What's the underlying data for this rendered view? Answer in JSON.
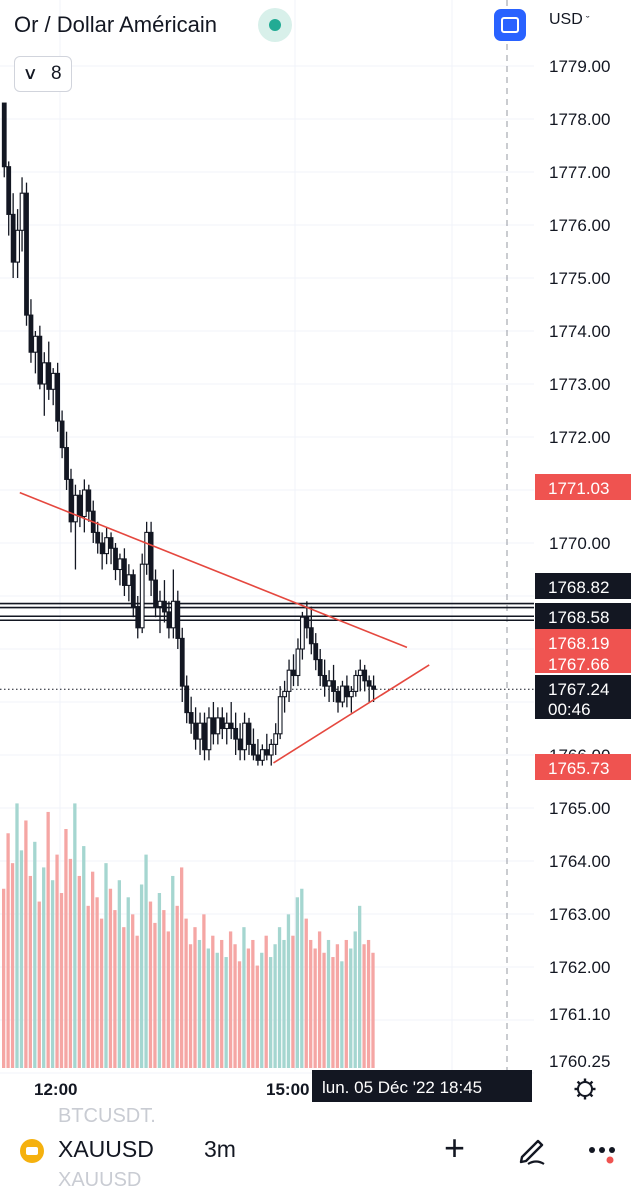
{
  "header": {
    "title": "Or / Dollar Américain",
    "currency": "USD",
    "indicators_count": "8"
  },
  "bottom_bar": {
    "ticker": "XAUUSD",
    "interval": "3m",
    "ghost_prev": "BTCUSDT.",
    "ghost_next": "XAUUSD"
  },
  "icons": [
    "status-dot-icon",
    "fullscreen-icon",
    "chevron-down-icon",
    "gold-icon",
    "plus-icon",
    "pencil-icon",
    "more-icon",
    "gear-icon"
  ],
  "colors": {
    "up": "#26a69a",
    "down": "#ef5350",
    "line": "#131722",
    "trendline": "#e5483f",
    "accent": "#2962ff"
  },
  "chart_data": {
    "type": "candlestick",
    "y_axis": {
      "ticks": [
        "1779.00",
        "1778.00",
        "1777.00",
        "1776.00",
        "1775.00",
        "1774.00",
        "1773.00",
        "1772.00",
        "1770.00",
        "1766.00",
        "1765.00",
        "1764.00",
        "1763.00",
        "1762.00",
        "1761.10",
        "1760.25"
      ]
    },
    "x_axis": {
      "ticks": [
        "12:00",
        "15:00"
      ]
    },
    "crosshair_time_label": "lun. 05 Déc '22   18:45",
    "price_labels": [
      {
        "text": "1771.03",
        "price": 1771.03,
        "style": "red"
      },
      {
        "text": "1768.82",
        "price": 1768.82,
        "style": "dark"
      },
      {
        "text": "1768.58",
        "price": 1768.58,
        "style": "dark"
      },
      {
        "text": "1768.19",
        "price": 1768.19,
        "style": "red"
      },
      {
        "text": "1767.66",
        "price": 1767.66,
        "style": "red"
      },
      {
        "text": "1767.24",
        "price": 1767.24,
        "style": "dark",
        "countdown": "00:46"
      },
      {
        "text": "1765.73",
        "price": 1765.73,
        "style": "red"
      }
    ],
    "horizontal_lines": [
      1768.82,
      1768.58
    ],
    "last_price": 1767.24,
    "trendlines": [
      {
        "name": "descending-resistance",
        "points": [
          [
            4,
            1770.95
          ],
          [
            91,
            1768.03
          ]
        ]
      },
      {
        "name": "ascending-support",
        "points": [
          [
            61,
            1765.85
          ],
          [
            96,
            1767.7
          ]
        ]
      }
    ],
    "candles": [
      [
        1778.3,
        1778.3,
        1776.9,
        1777.1
      ],
      [
        1777.1,
        1777.2,
        1775.8,
        1776.2
      ],
      [
        1776.2,
        1776.6,
        1775.0,
        1775.3
      ],
      [
        1775.3,
        1776.3,
        1775.0,
        1775.9
      ],
      [
        1775.9,
        1776.9,
        1775.5,
        1776.6
      ],
      [
        1776.6,
        1776.8,
        1774.1,
        1774.3
      ],
      [
        1774.3,
        1774.6,
        1773.4,
        1773.6
      ],
      [
        1773.6,
        1774.0,
        1773.2,
        1773.9
      ],
      [
        1773.9,
        1774.1,
        1772.9,
        1773.0
      ],
      [
        1773.0,
        1773.6,
        1772.4,
        1773.4
      ],
      [
        1773.4,
        1773.8,
        1772.7,
        1772.9
      ],
      [
        1772.9,
        1773.3,
        1772.6,
        1773.2
      ],
      [
        1773.2,
        1773.4,
        1772.1,
        1772.3
      ],
      [
        1772.3,
        1772.5,
        1771.6,
        1771.8
      ],
      [
        1771.8,
        1772.1,
        1771.0,
        1771.2
      ],
      [
        1771.2,
        1771.4,
        1770.2,
        1770.4
      ],
      [
        1770.4,
        1771.1,
        1769.5,
        1770.9
      ],
      [
        1770.9,
        1771.0,
        1770.3,
        1770.5
      ],
      [
        1770.5,
        1771.2,
        1770.2,
        1771.0
      ],
      [
        1771.0,
        1771.1,
        1770.4,
        1770.6
      ],
      [
        1770.6,
        1770.8,
        1770.0,
        1770.2
      ],
      [
        1770.2,
        1770.4,
        1769.8,
        1770.0
      ],
      [
        1770.0,
        1770.2,
        1769.5,
        1769.8
      ],
      [
        1769.8,
        1770.3,
        1769.6,
        1770.1
      ],
      [
        1770.1,
        1770.2,
        1769.6,
        1769.9
      ],
      [
        1769.9,
        1770.0,
        1769.3,
        1769.5
      ],
      [
        1769.5,
        1769.8,
        1769.2,
        1769.7
      ],
      [
        1769.7,
        1769.9,
        1769.0,
        1769.2
      ],
      [
        1769.2,
        1769.6,
        1768.9,
        1769.4
      ],
      [
        1769.4,
        1769.5,
        1768.6,
        1768.8
      ],
      [
        1768.8,
        1769.0,
        1768.2,
        1768.4
      ],
      [
        1768.4,
        1769.8,
        1768.3,
        1769.6
      ],
      [
        1769.6,
        1770.4,
        1769.4,
        1770.2
      ],
      [
        1770.2,
        1770.4,
        1769.0,
        1769.3
      ],
      [
        1769.3,
        1769.5,
        1768.6,
        1768.8
      ],
      [
        1768.8,
        1769.1,
        1768.3,
        1768.9
      ],
      [
        1768.9,
        1769.3,
        1768.5,
        1768.7
      ],
      [
        1768.7,
        1768.9,
        1768.2,
        1768.4
      ],
      [
        1768.4,
        1769.5,
        1768.2,
        1768.9
      ],
      [
        1768.9,
        1769.1,
        1768.0,
        1768.2
      ],
      [
        1768.2,
        1768.4,
        1767.0,
        1767.3
      ],
      [
        1767.3,
        1767.5,
        1766.6,
        1766.8
      ],
      [
        1766.8,
        1767.1,
        1766.4,
        1766.6
      ],
      [
        1766.6,
        1766.9,
        1766.1,
        1766.3
      ],
      [
        1766.3,
        1766.8,
        1766.0,
        1766.6
      ],
      [
        1766.6,
        1766.8,
        1765.9,
        1766.1
      ],
      [
        1766.1,
        1766.9,
        1765.9,
        1766.7
      ],
      [
        1766.7,
        1767.0,
        1766.2,
        1766.4
      ],
      [
        1766.4,
        1766.9,
        1766.2,
        1766.7
      ],
      [
        1766.7,
        1766.9,
        1766.3,
        1766.5
      ],
      [
        1766.5,
        1766.8,
        1766.2,
        1766.6
      ],
      [
        1766.6,
        1767.0,
        1766.3,
        1766.5
      ],
      [
        1766.5,
        1766.8,
        1766.0,
        1766.3
      ],
      [
        1766.3,
        1766.6,
        1765.9,
        1766.1
      ],
      [
        1766.1,
        1766.8,
        1765.9,
        1766.6
      ],
      [
        1766.6,
        1766.7,
        1766.0,
        1766.2
      ],
      [
        1766.2,
        1766.5,
        1765.9,
        1766.0
      ],
      [
        1766.0,
        1766.3,
        1765.8,
        1765.9
      ],
      [
        1765.9,
        1766.2,
        1765.8,
        1766.1
      ],
      [
        1766.1,
        1766.4,
        1765.9,
        1766.0
      ],
      [
        1766.0,
        1766.3,
        1765.8,
        1766.2
      ],
      [
        1766.2,
        1766.6,
        1766.0,
        1766.4
      ],
      [
        1766.4,
        1767.3,
        1766.3,
        1767.1
      ],
      [
        1767.1,
        1767.4,
        1766.8,
        1767.2
      ],
      [
        1767.2,
        1767.8,
        1767.0,
        1767.6
      ],
      [
        1767.6,
        1767.9,
        1767.3,
        1767.5
      ],
      [
        1767.5,
        1768.2,
        1767.3,
        1768.0
      ],
      [
        1768.0,
        1768.7,
        1767.8,
        1768.6
      ],
      [
        1768.6,
        1768.9,
        1768.2,
        1768.4
      ],
      [
        1768.4,
        1768.8,
        1767.9,
        1768.1
      ],
      [
        1768.1,
        1768.3,
        1767.6,
        1767.8
      ],
      [
        1767.8,
        1768.0,
        1767.3,
        1767.5
      ],
      [
        1767.5,
        1767.8,
        1767.1,
        1767.3
      ],
      [
        1767.3,
        1767.6,
        1767.0,
        1767.4
      ],
      [
        1767.4,
        1767.7,
        1767.0,
        1767.2
      ],
      [
        1767.2,
        1767.3,
        1766.8,
        1767.0
      ],
      [
        1767.0,
        1767.4,
        1766.9,
        1767.3
      ],
      [
        1767.3,
        1767.5,
        1766.9,
        1767.1
      ],
      [
        1767.1,
        1767.3,
        1766.8,
        1767.2
      ],
      [
        1767.2,
        1767.6,
        1767.1,
        1767.5
      ],
      [
        1767.5,
        1767.8,
        1767.2,
        1767.6
      ],
      [
        1767.6,
        1767.7,
        1767.2,
        1767.4
      ],
      [
        1767.4,
        1767.5,
        1767.0,
        1767.3
      ],
      [
        1767.3,
        1767.5,
        1767.0,
        1767.24
      ]
    ],
    "volumes": [
      0.42,
      0.55,
      0.48,
      0.62,
      0.51,
      0.58,
      0.45,
      0.53,
      0.39,
      0.47,
      0.6,
      0.44,
      0.5,
      0.41,
      0.56,
      0.49,
      0.62,
      0.45,
      0.52,
      0.38,
      0.46,
      0.4,
      0.35,
      0.48,
      0.42,
      0.37,
      0.44,
      0.33,
      0.4,
      0.36,
      0.31,
      0.43,
      0.5,
      0.39,
      0.34,
      0.41,
      0.37,
      0.32,
      0.45,
      0.38,
      0.47,
      0.35,
      0.29,
      0.33,
      0.3,
      0.36,
      0.28,
      0.31,
      0.27,
      0.3,
      0.26,
      0.32,
      0.29,
      0.25,
      0.33,
      0.28,
      0.3,
      0.24,
      0.27,
      0.31,
      0.26,
      0.29,
      0.33,
      0.3,
      0.36,
      0.31,
      0.4,
      0.42,
      0.35,
      0.3,
      0.28,
      0.32,
      0.27,
      0.3,
      0.26,
      0.29,
      0.25,
      0.3,
      0.28,
      0.32,
      0.38,
      0.29,
      0.3,
      0.27
    ]
  }
}
